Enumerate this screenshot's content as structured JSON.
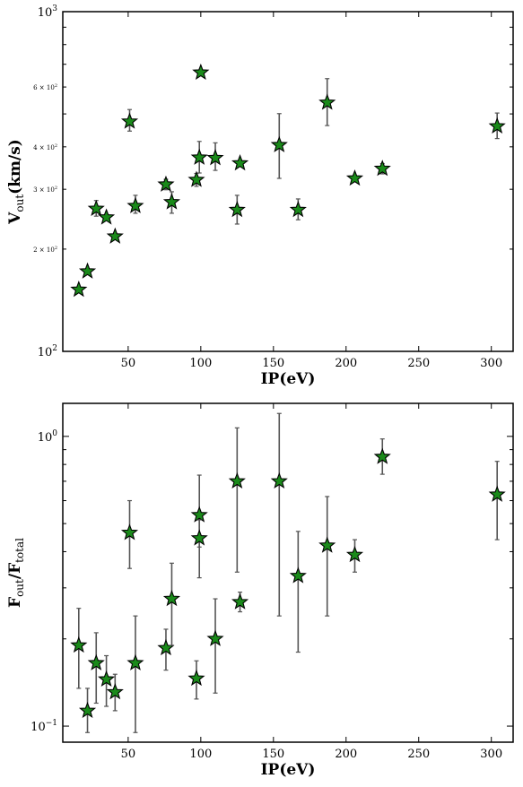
{
  "chart_data": [
    {
      "type": "scatter",
      "xlabel": "IP(eV)",
      "ylabel_main": "V",
      "ylabel_sub": "out",
      "ylabel_tail": "(km/s)",
      "yscale": "log",
      "xlim": [
        5,
        315
      ],
      "ylim": [
        100,
        1000
      ],
      "x_ticks": [
        50,
        100,
        150,
        200,
        250,
        300
      ],
      "x_tick_labels": [
        "50",
        "100",
        "150",
        "200",
        "250",
        "300"
      ],
      "y_major_ticks": [
        {
          "value": 100,
          "base": "10",
          "exp": "2"
        },
        {
          "value": 1000,
          "base": "10",
          "exp": "3"
        }
      ],
      "y_minor_ticks": [
        200,
        300,
        400,
        500,
        600,
        700,
        800,
        900
      ],
      "y_minor_tick_labels": [
        {
          "value": 200,
          "text": "2 × 10",
          "exp": "2"
        },
        {
          "value": 300,
          "text": "3 × 10",
          "exp": "2"
        },
        {
          "value": 400,
          "text": "4 × 10",
          "exp": "2"
        },
        {
          "value": 600,
          "text": "6 × 10",
          "exp": "2"
        }
      ],
      "grid": false,
      "marker": "star",
      "marker_color": "#1a8a1a",
      "errorbar_color": "#555555",
      "points": [
        {
          "x": 16,
          "y": 152,
          "err_low": 0,
          "err_high": 0
        },
        {
          "x": 22,
          "y": 172,
          "err_low": 0,
          "err_high": 0
        },
        {
          "x": 28,
          "y": 263,
          "err_low": 13,
          "err_high": 15
        },
        {
          "x": 35,
          "y": 248,
          "err_low": 0,
          "err_high": 0
        },
        {
          "x": 41,
          "y": 218,
          "err_low": 0,
          "err_high": 0
        },
        {
          "x": 51,
          "y": 475,
          "err_low": 30,
          "err_high": 40
        },
        {
          "x": 55,
          "y": 268,
          "err_low": 13,
          "err_high": 20
        },
        {
          "x": 76,
          "y": 310,
          "err_low": 11,
          "err_high": 11
        },
        {
          "x": 80,
          "y": 275,
          "err_low": 20,
          "err_high": 20
        },
        {
          "x": 97,
          "y": 320,
          "err_low": 14,
          "err_high": 14
        },
        {
          "x": 99,
          "y": 372,
          "err_low": 37,
          "err_high": 43
        },
        {
          "x": 100,
          "y": 662,
          "err_low": 0,
          "err_high": 0
        },
        {
          "x": 110,
          "y": 371,
          "err_low": 30,
          "err_high": 40
        },
        {
          "x": 125,
          "y": 261,
          "err_low": 24,
          "err_high": 27
        },
        {
          "x": 127,
          "y": 358,
          "err_low": 0,
          "err_high": 0
        },
        {
          "x": 154,
          "y": 405,
          "err_low": 82,
          "err_high": 96
        },
        {
          "x": 167,
          "y": 261,
          "err_low": 17,
          "err_high": 20
        },
        {
          "x": 187,
          "y": 540,
          "err_low": 78,
          "err_high": 95
        },
        {
          "x": 206,
          "y": 323,
          "err_low": 0,
          "err_high": 0
        },
        {
          "x": 225,
          "y": 345,
          "err_low": 12,
          "err_high": 12
        },
        {
          "x": 304,
          "y": 460,
          "err_low": 37,
          "err_high": 43
        }
      ]
    },
    {
      "type": "scatter",
      "xlabel": "IP(eV)",
      "ylabel_main": "F",
      "ylabel_sub": "out",
      "ylabel_mid": "/F",
      "ylabel_sub2": "total",
      "yscale": "log",
      "xlim": [
        5,
        315
      ],
      "ylim": [
        0.088,
        1.3
      ],
      "x_ticks": [
        50,
        100,
        150,
        200,
        250,
        300
      ],
      "x_tick_labels": [
        "50",
        "100",
        "150",
        "200",
        "250",
        "300"
      ],
      "y_major_ticks": [
        {
          "value": 0.1,
          "base": "10",
          "exp": "−1"
        },
        {
          "value": 1,
          "base": "10",
          "exp": "0"
        }
      ],
      "y_minor_ticks": [
        0.2,
        0.3,
        0.4,
        0.5,
        0.6,
        0.7,
        0.8,
        0.9
      ],
      "grid": false,
      "marker": "star",
      "marker_color": "#1a8a1a",
      "errorbar_color": "#555555",
      "points": [
        {
          "x": 16,
          "y": 0.19,
          "err_low": 0.055,
          "err_high": 0.065
        },
        {
          "x": 22,
          "y": 0.113,
          "err_low": 0.018,
          "err_high": 0.022
        },
        {
          "x": 28,
          "y": 0.165,
          "err_low": 0.045,
          "err_high": 0.045
        },
        {
          "x": 35,
          "y": 0.145,
          "err_low": 0.028,
          "err_high": 0.03
        },
        {
          "x": 41,
          "y": 0.131,
          "err_low": 0.018,
          "err_high": 0.02
        },
        {
          "x": 51,
          "y": 0.465,
          "err_low": 0.115,
          "err_high": 0.135
        },
        {
          "x": 55,
          "y": 0.165,
          "err_low": 0.07,
          "err_high": 0.075
        },
        {
          "x": 76,
          "y": 0.186,
          "err_low": 0.03,
          "err_high": 0.03
        },
        {
          "x": 80,
          "y": 0.275,
          "err_low": 0.085,
          "err_high": 0.09
        },
        {
          "x": 97,
          "y": 0.146,
          "err_low": 0.022,
          "err_high": 0.022
        },
        {
          "x": 99,
          "y": 0.535,
          "err_low": 0.12,
          "err_high": 0.2
        },
        {
          "x": 99,
          "y": 0.445,
          "err_low": 0.12,
          "err_high": 0.07
        },
        {
          "x": 110,
          "y": 0.2,
          "err_low": 0.07,
          "err_high": 0.075
        },
        {
          "x": 125,
          "y": 0.7,
          "err_low": 0.36,
          "err_high": 0.37
        },
        {
          "x": 127,
          "y": 0.268,
          "err_low": 0.02,
          "err_high": 0.022
        },
        {
          "x": 154,
          "y": 0.7,
          "err_low": 0.46,
          "err_high": 0.5
        },
        {
          "x": 167,
          "y": 0.33,
          "err_low": 0.15,
          "err_high": 0.14
        },
        {
          "x": 187,
          "y": 0.42,
          "err_low": 0.18,
          "err_high": 0.2
        },
        {
          "x": 206,
          "y": 0.39,
          "err_low": 0.05,
          "err_high": 0.05
        },
        {
          "x": 225,
          "y": 0.85,
          "err_low": 0.11,
          "err_high": 0.13
        },
        {
          "x": 304,
          "y": 0.63,
          "err_low": 0.19,
          "err_high": 0.19
        }
      ]
    }
  ]
}
